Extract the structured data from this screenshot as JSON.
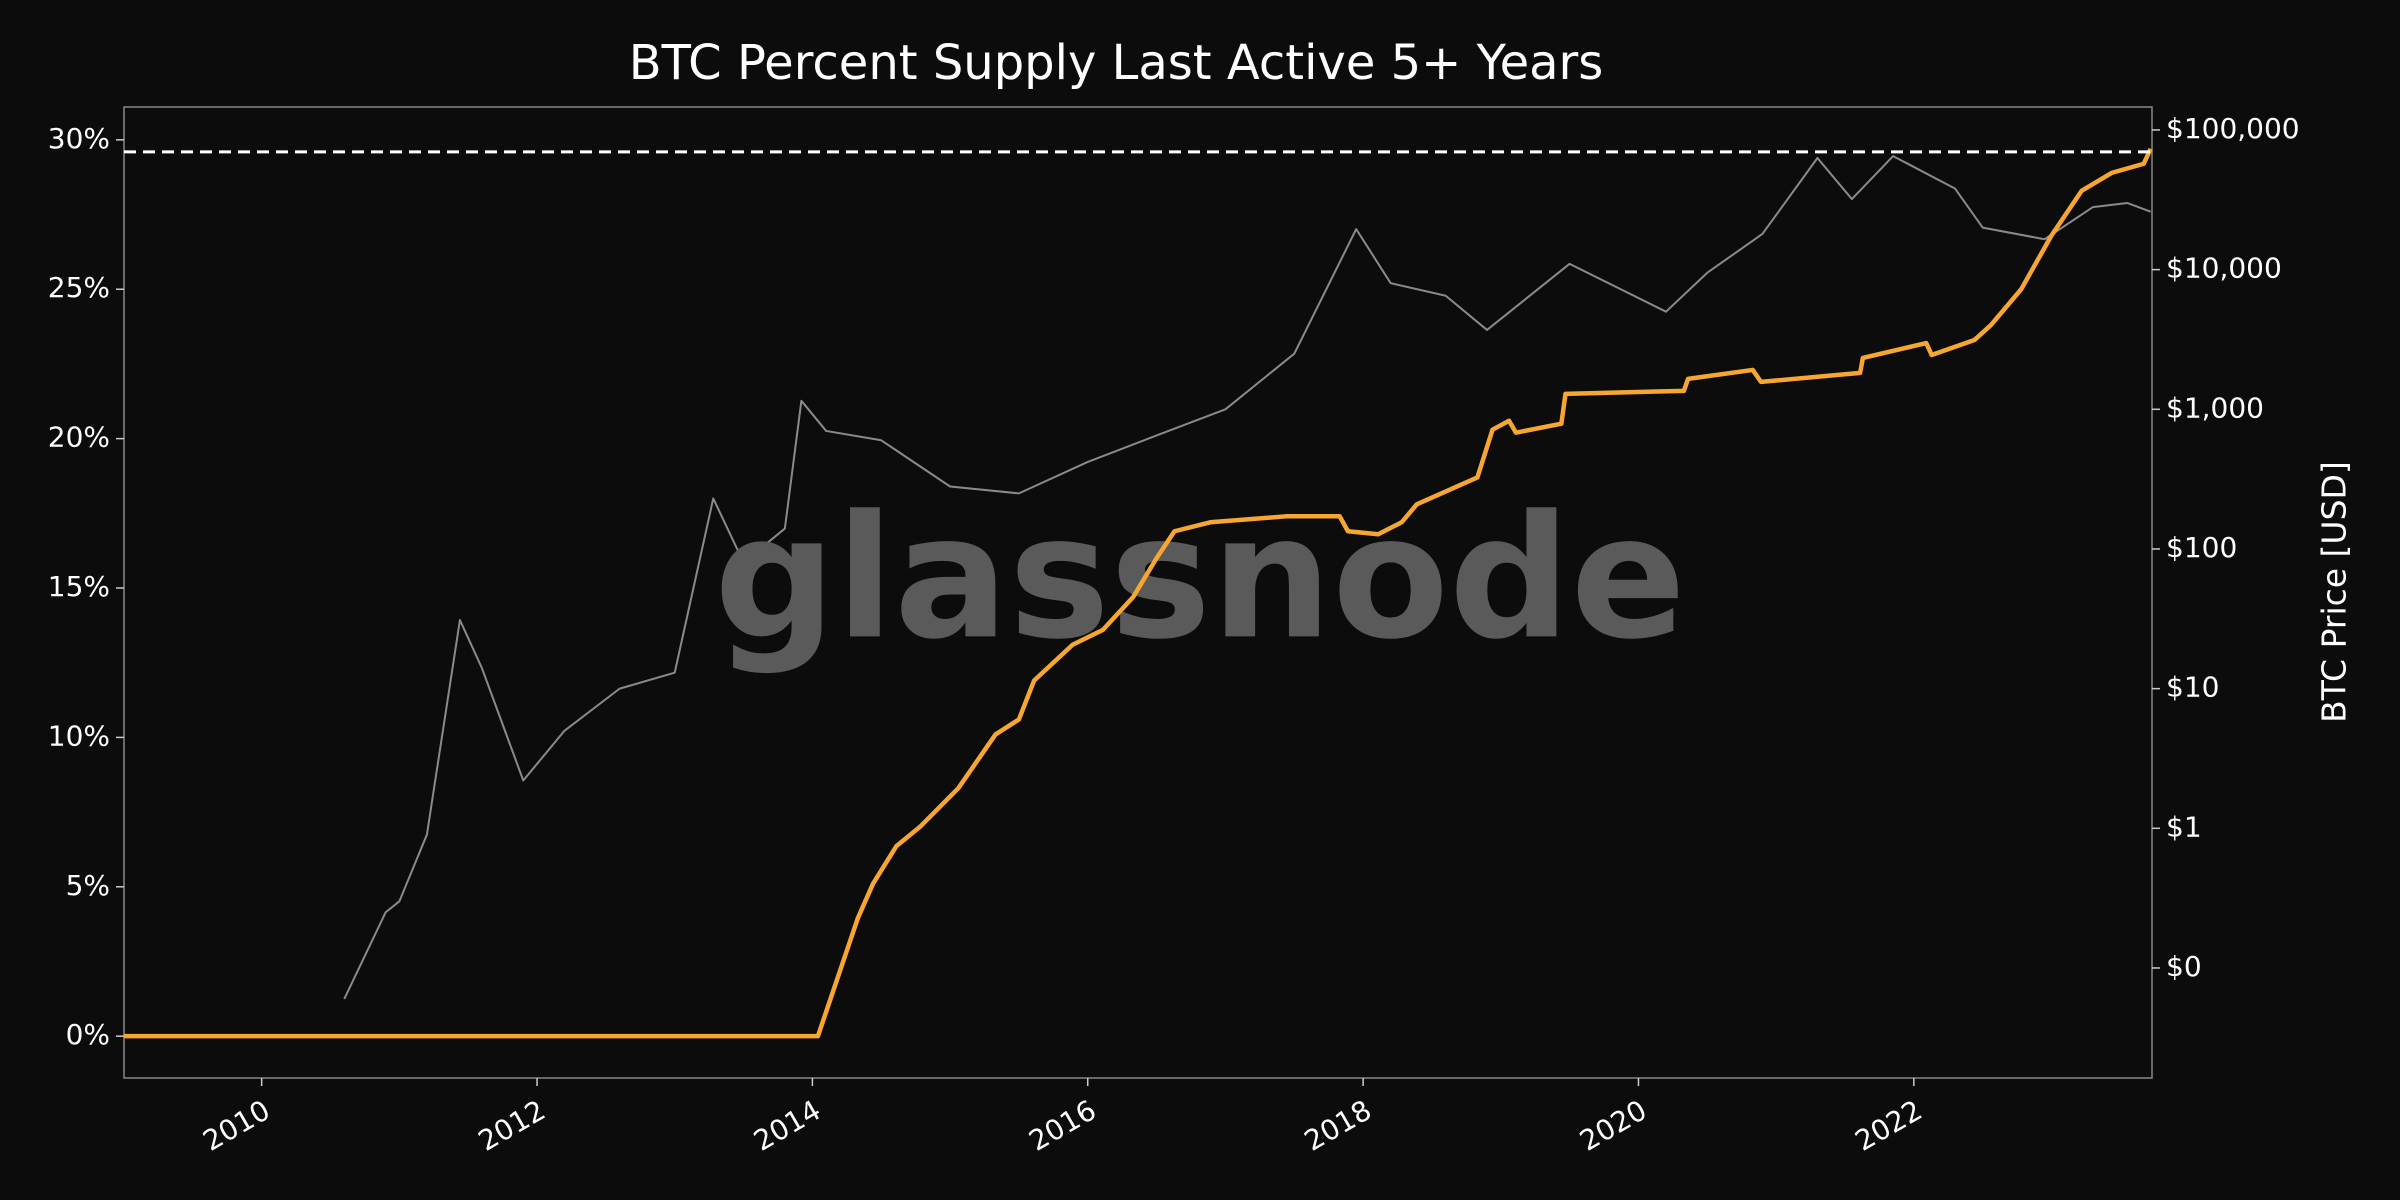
{
  "chart_data": {
    "type": "line",
    "title": "BTC Percent Supply Last Active 5+ Years",
    "y2label": "BTC Price [USD]",
    "watermark": "glassnode",
    "background": "#0c0c0c",
    "xlim": [
      2009.0,
      2023.73
    ],
    "xticks": [
      2010,
      2012,
      2014,
      2016,
      2018,
      2020,
      2022
    ],
    "ylim": [
      -1.4,
      31.1
    ],
    "yticks": [
      {
        "value": 0,
        "label": "0%"
      },
      {
        "value": 5,
        "label": "5%"
      },
      {
        "value": 10,
        "label": "10%"
      },
      {
        "value": 15,
        "label": "15%"
      },
      {
        "value": 20,
        "label": "20%"
      },
      {
        "value": 25,
        "label": "25%"
      },
      {
        "value": 30,
        "label": "30%"
      }
    ],
    "y2scale": "log",
    "y2lim": [
      0.0163,
      146000
    ],
    "y2ticks": [
      {
        "value": 0.1,
        "label": "$0"
      },
      {
        "value": 1,
        "label": "$1"
      },
      {
        "value": 10,
        "label": "$10"
      },
      {
        "value": 100,
        "label": "$100"
      },
      {
        "value": 1000,
        "label": "$1,000"
      },
      {
        "value": 10000,
        "label": "$10,000"
      },
      {
        "value": 100000,
        "label": "$100,000"
      }
    ],
    "hline": {
      "value": 29.6,
      "color": "#ffffff",
      "dashed": true
    },
    "series": [
      {
        "name": "BTC Price",
        "color": "#8a8a8a",
        "axis": "y2",
        "x": [
          2010.6,
          2010.9,
          2011.0,
          2011.2,
          2011.44,
          2011.6,
          2011.9,
          2012.2,
          2012.6,
          2013.0,
          2013.28,
          2013.5,
          2013.8,
          2013.92,
          2014.1,
          2014.5,
          2015.0,
          2015.5,
          2016.0,
          2016.5,
          2017.0,
          2017.5,
          2017.95,
          2018.2,
          2018.6,
          2018.9,
          2019.5,
          2020.2,
          2020.5,
          2020.9,
          2021.3,
          2021.55,
          2021.85,
          2022.3,
          2022.5,
          2022.95,
          2023.3,
          2023.55,
          2023.72
        ],
        "values": [
          0.06,
          0.25,
          0.3,
          0.9,
          31,
          14,
          2.2,
          5,
          10,
          13,
          230,
          80,
          140,
          1150,
          700,
          600,
          280,
          250,
          420,
          650,
          1000,
          2500,
          19500,
          8000,
          6500,
          3700,
          11000,
          5000,
          9500,
          18000,
          63000,
          32000,
          65000,
          38000,
          20000,
          16500,
          28000,
          30000,
          26000
        ]
      },
      {
        "name": "Percent Supply Last Active 5+ Years",
        "color": "#f7a731",
        "axis": "y",
        "x": [
          2009.0,
          2014.04,
          2014.33,
          2014.44,
          2014.61,
          2014.78,
          2015.06,
          2015.33,
          2015.5,
          2015.61,
          2015.89,
          2016.11,
          2016.33,
          2016.5,
          2016.63,
          2016.89,
          2017.44,
          2017.83,
          2017.89,
          2018.11,
          2018.28,
          2018.39,
          2018.83,
          2018.94,
          2019.06,
          2019.11,
          2019.44,
          2019.47,
          2020.33,
          2020.36,
          2020.83,
          2020.89,
          2021.61,
          2021.63,
          2022.09,
          2022.13,
          2022.44,
          2022.56,
          2022.78,
          2023.0,
          2023.22,
          2023.44,
          2023.67,
          2023.72
        ],
        "values": [
          0,
          0,
          3.95,
          5.1,
          6.36,
          7.0,
          8.3,
          10.1,
          10.6,
          11.9,
          13.1,
          13.6,
          14.7,
          16.0,
          16.9,
          17.2,
          17.4,
          17.4,
          16.9,
          16.8,
          17.2,
          17.8,
          18.7,
          20.3,
          20.6,
          20.2,
          20.5,
          21.5,
          21.6,
          22.0,
          22.3,
          21.9,
          22.2,
          22.7,
          23.2,
          22.8,
          23.3,
          23.8,
          25.0,
          26.8,
          28.3,
          28.9,
          29.2,
          29.7
        ]
      }
    ]
  }
}
